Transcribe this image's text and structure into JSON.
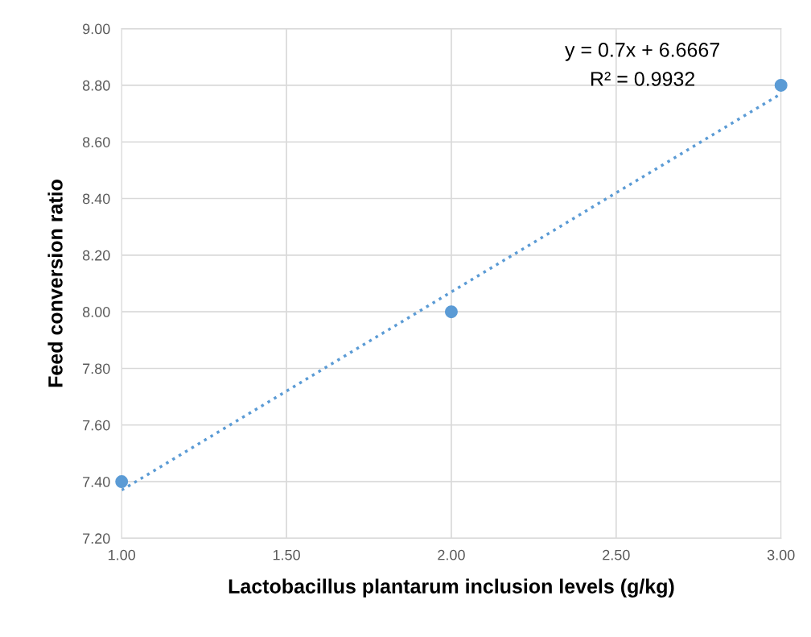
{
  "chart_data": {
    "type": "scatter",
    "xlabel": "Lactobacillus plantarum inclusion levels (g/kg)",
    "ylabel": "Feed conversion ratio",
    "series": [
      {
        "color": "#5b9bd5",
        "x": [
          1,
          2,
          3
        ],
        "values": [
          7.4,
          8.0,
          8.8
        ],
        "marker": "circle"
      },
      {
        "type": "line",
        "color": "#5b9bd5",
        "x": [
          1,
          3
        ],
        "values": [
          7.37,
          8.77
        ],
        "line_style": "dotted",
        "marker": "none"
      }
    ],
    "annotations": [
      "y = 0.7x + 6.6667",
      "R² = 0.9932"
    ],
    "xlim": [
      1,
      3
    ],
    "xticks": [
      {
        "value": 1,
        "label": "1.00"
      },
      {
        "value": 1.5,
        "label": "1.50"
      },
      {
        "value": 2,
        "label": "2.00"
      },
      {
        "value": 2.5,
        "label": "2.50"
      },
      {
        "value": 3,
        "label": "3.00"
      }
    ],
    "ylim": [
      7.2,
      9.0
    ],
    "yticks": [
      {
        "value": 7.2,
        "label": "7.20"
      },
      {
        "value": 7.4,
        "label": "7.40"
      },
      {
        "value": 7.6,
        "label": "7.60"
      },
      {
        "value": 7.8,
        "label": "7.80"
      },
      {
        "value": 8.0,
        "label": "8.00"
      },
      {
        "value": 8.2,
        "label": "8.20"
      },
      {
        "value": 8.4,
        "label": "8.40"
      },
      {
        "value": 8.6,
        "label": "8.60"
      },
      {
        "value": 8.8,
        "label": "8.80"
      },
      {
        "value": 9.0,
        "label": "9.00"
      }
    ],
    "grid": true
  }
}
